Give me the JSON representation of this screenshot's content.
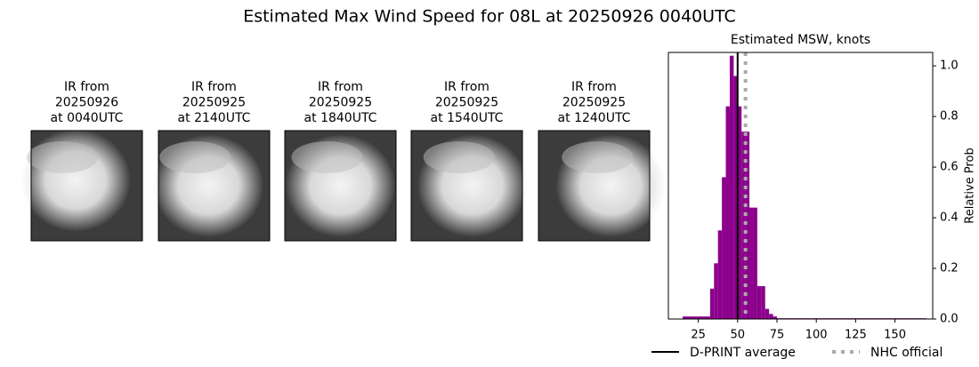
{
  "title": "Estimated Max Wind Speed for 08L at 20250926 0040UTC",
  "panels": [
    {
      "lines": [
        "IR from",
        "20250926",
        "at 0040UTC"
      ]
    },
    {
      "lines": [
        "IR from",
        "20250925",
        "at 2140UTC"
      ]
    },
    {
      "lines": [
        "IR from",
        "20250925",
        "at 1840UTC"
      ]
    },
    {
      "lines": [
        "IR from",
        "20250925",
        "at 1540UTC"
      ]
    },
    {
      "lines": [
        "IR from",
        "20250925",
        "at 1240UTC"
      ]
    }
  ],
  "chart_data": {
    "type": "histogram",
    "title": "Estimated MSW, knots",
    "ylabel": "Relative Prob",
    "bins": [
      15,
      32.5,
      35,
      37.5,
      40,
      42.5,
      45,
      47.5,
      50,
      52.5,
      55,
      57.5,
      60,
      62.5,
      65,
      67.5,
      70,
      72.5,
      75,
      170
    ],
    "values": [
      0.01,
      0.12,
      0.22,
      0.35,
      0.56,
      0.84,
      1.04,
      0.96,
      0.84,
      0.74,
      0.74,
      0.44,
      0.44,
      0.13,
      0.13,
      0.04,
      0.02,
      0.01,
      0.003
    ],
    "color": "#8b008b",
    "xlim": [
      6,
      174
    ],
    "xticks": [
      25,
      50,
      75,
      100,
      125,
      150
    ],
    "ylim": [
      0,
      1.053
    ],
    "yticks": [
      {
        "value": 0,
        "label": "0.0"
      },
      {
        "value": 0.2,
        "label": "0.2"
      },
      {
        "value": 0.4,
        "label": "0.4"
      },
      {
        "value": 0.6,
        "label": "0.6"
      },
      {
        "value": 0.8,
        "label": "0.8"
      },
      {
        "value": 1.0,
        "label": "1.0"
      }
    ],
    "lines": [
      {
        "name": "D-PRINT average",
        "value": 50,
        "color": "#000000",
        "style": "solid"
      },
      {
        "name": "NHC official",
        "value": 55,
        "color": "#aaaaaa",
        "style": "dotted"
      }
    ]
  }
}
